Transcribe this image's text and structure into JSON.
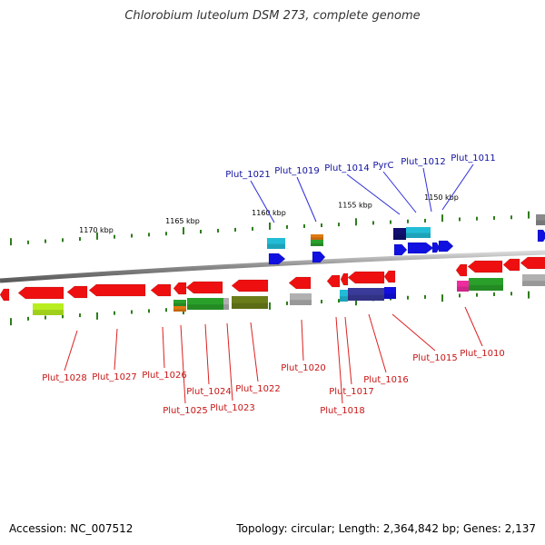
{
  "header": {
    "title": "Chlorobium luteolum DSM 273, complete genome"
  },
  "footer": {
    "accession": "Accession: NC_007512",
    "summary": "Topology: circular; Length: 2,364,842 bp; Genes: 2,137"
  },
  "colors": {
    "backbone": "#8a8a8a",
    "tick": "#2e7d1c",
    "label_forward": "#1010a0",
    "label_reverse": "#c81414",
    "leader_forward": "#2b2bdc",
    "leader_reverse": "#dc2020"
  },
  "map": {
    "kbp_labels": [
      {
        "text": "1170 kbp",
        "pos": 1170
      },
      {
        "text": "1165 kbp",
        "pos": 1165
      },
      {
        "text": "1160 kbp",
        "pos": 1160
      },
      {
        "text": "1155 kbp",
        "pos": 1155
      },
      {
        "text": "1150 kbp",
        "pos": 1150
      }
    ],
    "forward_labels": [
      "Plut_1021",
      "Plut_1019",
      "Plut_1014",
      "PyrC",
      "Plut_1012",
      "Plut_1011"
    ],
    "reverse_labels": [
      "Plut_1028",
      "Plut_1027",
      "Plut_1026",
      "Plut_1025",
      "Plut_1024",
      "Plut_1023",
      "Plut_1022",
      "Plut_1020",
      "Plut_1018",
      "Plut_1017",
      "Plut_1016",
      "Plut_1015",
      "Plut_1010"
    ]
  }
}
